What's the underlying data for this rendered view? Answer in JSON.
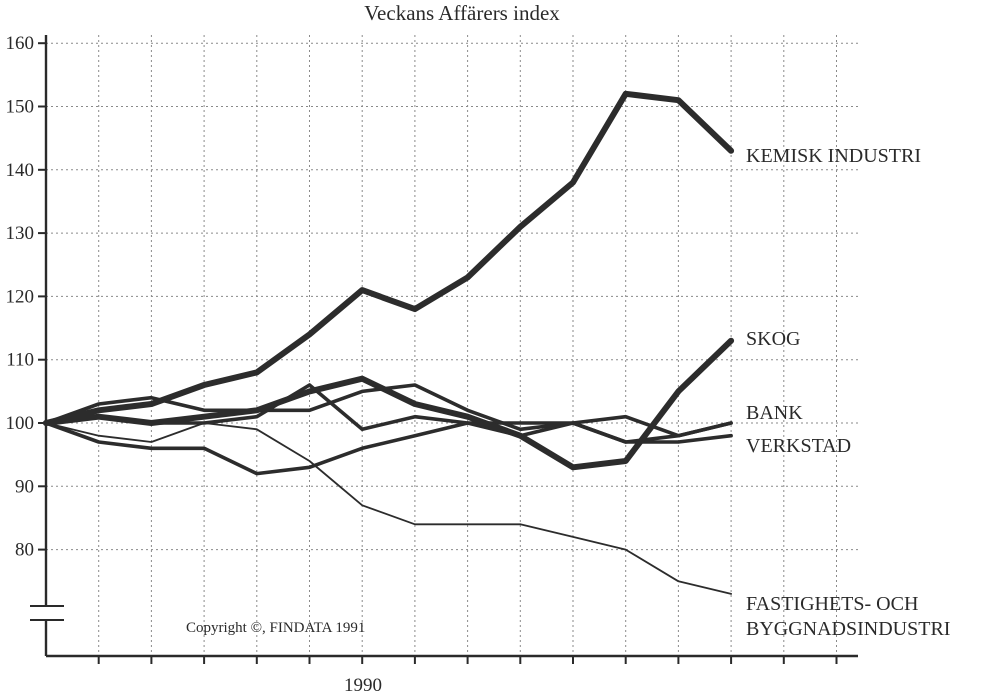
{
  "chart_data": {
    "type": "line",
    "title": "Veckans Affärers index",
    "xlabel": "1990",
    "ylabel": "",
    "ylim": [
      70,
      162
    ],
    "y_ticks": [
      80,
      90,
      100,
      110,
      120,
      130,
      140,
      150,
      160
    ],
    "axis_break": true,
    "grid": true,
    "copyright": "Copyright ©, FINDATA 1991",
    "x": [
      0,
      1,
      2,
      3,
      4,
      5,
      6,
      7,
      8,
      9,
      10,
      11,
      12,
      13
    ],
    "series": [
      {
        "name": "KEMISK INDUSTRI",
        "weight": "heavy",
        "values": [
          100,
          102,
          103,
          106,
          108,
          114,
          121,
          118,
          123,
          131,
          138,
          152,
          151,
          143
        ]
      },
      {
        "name": "SKOG",
        "weight": "heavy",
        "values": [
          100,
          101,
          100,
          101,
          102,
          105,
          107,
          103,
          101,
          98,
          93,
          94,
          105,
          113
        ]
      },
      {
        "name": "BANK",
        "weight": "medium",
        "values": [
          100,
          103,
          104,
          102,
          102,
          102,
          105,
          106,
          102,
          99,
          100,
          101,
          98,
          100
        ]
      },
      {
        "name": "VERKSTAD",
        "weight": "medium",
        "values": [
          100,
          97,
          96,
          96,
          92,
          93,
          96,
          98,
          100,
          100,
          100,
          97,
          97,
          98
        ]
      },
      {
        "name": "FASTIGHETS- OCH\nBYGGNADSINDUSTRI",
        "weight": "thin",
        "values": [
          100,
          98,
          97,
          100,
          99,
          94,
          87,
          84,
          84,
          84,
          82,
          80,
          75,
          73
        ]
      },
      {
        "name": "",
        "weight": "medium",
        "values": [
          100,
          101,
          100,
          100,
          101,
          106,
          99,
          101,
          100,
          98,
          100,
          97,
          98,
          100
        ]
      }
    ]
  }
}
